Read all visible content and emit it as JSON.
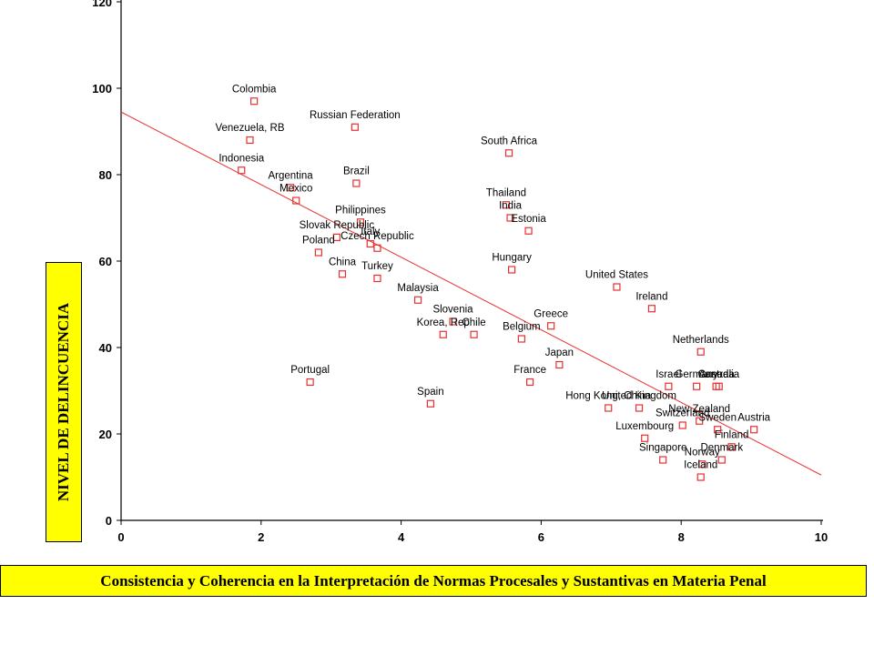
{
  "chart_data": {
    "type": "scatter",
    "title": "",
    "xlabel": "",
    "ylabel": "NIVEL DE DELINCUENCIA",
    "xlim": [
      0,
      10
    ],
    "ylim": [
      0,
      120
    ],
    "x_ticks": [
      "0",
      "2",
      "4",
      "6",
      "8",
      "10"
    ],
    "y_ticks": [
      "0",
      "20",
      "40",
      "60",
      "80",
      "100",
      "120"
    ],
    "grid": false,
    "legend": "none",
    "marker_color": "#e8302f",
    "trendline": {
      "color": "#e8302f",
      "x": [
        0,
        10
      ],
      "y": [
        94.5,
        10.5
      ]
    },
    "points": [
      {
        "label": "Colombia",
        "x": 1.9,
        "y": 97
      },
      {
        "label": "Venezuela, RB",
        "x": 1.84,
        "y": 88
      },
      {
        "label": "Russian Federation",
        "x": 3.34,
        "y": 91
      },
      {
        "label": "Indonesia",
        "x": 1.72,
        "y": 81
      },
      {
        "label": "Argentina",
        "x": 2.42,
        "y": 77
      },
      {
        "label": "Brazil",
        "x": 3.36,
        "y": 78
      },
      {
        "label": "Mexico",
        "x": 2.5,
        "y": 74
      },
      {
        "label": "Philippines",
        "x": 3.42,
        "y": 69
      },
      {
        "label": "Slovak Republic",
        "x": 3.08,
        "y": 65.5
      },
      {
        "label": "Italy",
        "x": 3.56,
        "y": 64
      },
      {
        "label": "Czech Republic",
        "x": 3.66,
        "y": 63
      },
      {
        "label": "Poland",
        "x": 2.82,
        "y": 62
      },
      {
        "label": "China",
        "x": 3.16,
        "y": 57
      },
      {
        "label": "Turkey",
        "x": 3.66,
        "y": 56
      },
      {
        "label": "Malaysia",
        "x": 4.24,
        "y": 51
      },
      {
        "label": "Slovenia",
        "x": 4.74,
        "y": 46
      },
      {
        "label": "Korea, Rep",
        "x": 4.6,
        "y": 43
      },
      {
        "label": "Chile",
        "x": 5.04,
        "y": 43
      },
      {
        "label": "Portugal",
        "x": 2.7,
        "y": 32
      },
      {
        "label": "Spain",
        "x": 4.42,
        "y": 27
      },
      {
        "label": "South Africa",
        "x": 5.54,
        "y": 85
      },
      {
        "label": "Thailand",
        "x": 5.5,
        "y": 73
      },
      {
        "label": "India",
        "x": 5.56,
        "y": 70
      },
      {
        "label": "Estonia",
        "x": 5.82,
        "y": 67
      },
      {
        "label": "Hungary",
        "x": 5.58,
        "y": 58
      },
      {
        "label": "Belgium",
        "x": 5.72,
        "y": 42
      },
      {
        "label": "Greece",
        "x": 6.14,
        "y": 45
      },
      {
        "label": "Japan",
        "x": 6.26,
        "y": 36
      },
      {
        "label": "France",
        "x": 5.84,
        "y": 32
      },
      {
        "label": "United States",
        "x": 7.08,
        "y": 54
      },
      {
        "label": "Ireland",
        "x": 7.58,
        "y": 49
      },
      {
        "label": "Netherlands",
        "x": 8.28,
        "y": 39
      },
      {
        "label": "Israel",
        "x": 7.82,
        "y": 31
      },
      {
        "label": "Germany",
        "x": 8.22,
        "y": 31
      },
      {
        "label": "Canada",
        "x": 8.5,
        "y": 31
      },
      {
        "label": "Australia",
        "x": 8.54,
        "y": 31
      },
      {
        "label": "Hong Kong, China",
        "x": 6.96,
        "y": 26
      },
      {
        "label": "United Kingdom",
        "x": 7.4,
        "y": 26
      },
      {
        "label": "New Zealand",
        "x": 8.26,
        "y": 23
      },
      {
        "label": "Switzerland",
        "x": 8.02,
        "y": 22
      },
      {
        "label": "Sweden",
        "x": 8.52,
        "y": 21
      },
      {
        "label": "Austria",
        "x": 9.04,
        "y": 21
      },
      {
        "label": "Luxembourg",
        "x": 7.48,
        "y": 19
      },
      {
        "label": "Finland",
        "x": 8.72,
        "y": 17
      },
      {
        "label": "Denmark",
        "x": 8.58,
        "y": 14
      },
      {
        "label": "Singapore",
        "x": 7.74,
        "y": 14
      },
      {
        "label": "Norway",
        "x": 8.3,
        "y": 13
      },
      {
        "label": "Iceland",
        "x": 8.28,
        "y": 10
      }
    ]
  },
  "footer": {
    "banner_text": "Consistencia y Coherencia en la Interpretación de Normas Procesales y Sustantivas en Materia Penal"
  }
}
